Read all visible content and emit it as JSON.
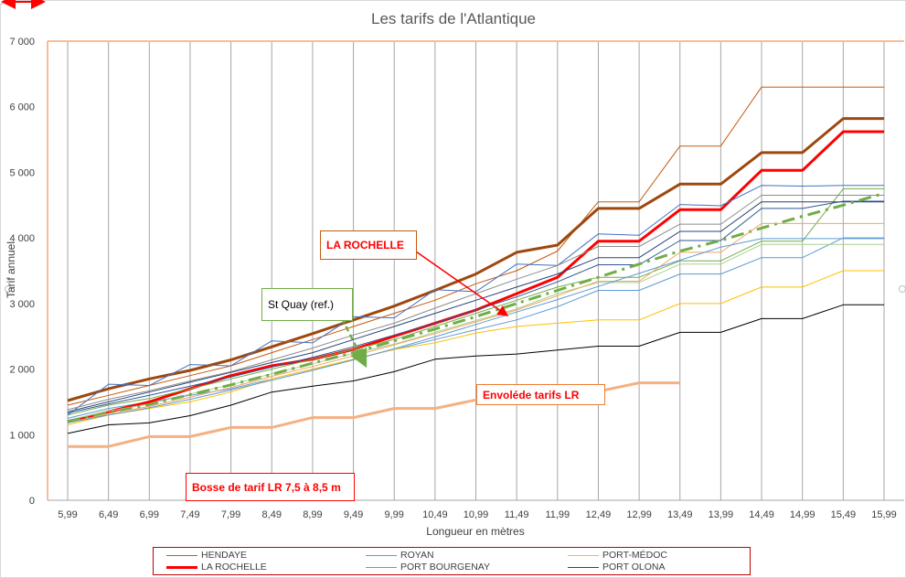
{
  "chart_data": {
    "type": "line",
    "title": "Les tarifs de l'Atlantique",
    "xlabel": "Longueur en mètres",
    "ylabel": "Tarif annuel",
    "ylim": [
      0,
      7000
    ],
    "y_ticks": [
      "0",
      "1 000",
      "2 000",
      "3 000",
      "4 000",
      "5 000",
      "6 000",
      "7 000"
    ],
    "categories": [
      "5,99",
      "6,49",
      "6,99",
      "7,49",
      "7,99",
      "8,49",
      "8,99",
      "9,49",
      "9,99",
      "10,49",
      "10,99",
      "11,49",
      "11,99",
      "12,49",
      "12,99",
      "13,49",
      "13,99",
      "14,49",
      "14,99",
      "15,49",
      "15,99"
    ],
    "grid": "vertical",
    "legend_position": "bottom",
    "series": [
      {
        "name": "HENDAYE",
        "color": "#c55a11",
        "width": 1,
        "values": [
          1450,
          1600,
          1750,
          1900,
          2050,
          2250,
          2450,
          2650,
          2850,
          3050,
          3300,
          3500,
          3800,
          4550,
          4550,
          5400,
          5400,
          6300,
          6300,
          6300,
          6300
        ]
      },
      {
        "name": "ROYAN",
        "color": "#5b9bd5",
        "width": 1,
        "values": [
          1250,
          1400,
          1500,
          1600,
          1700,
          1850,
          2000,
          2150,
          2300,
          2450,
          2600,
          2750,
          2950,
          3200,
          3200,
          3450,
          3450,
          3700,
          3700,
          4000,
          4000
        ]
      },
      {
        "name": "PORT-MÉDOC",
        "color": "#ffc000",
        "width": 1,
        "values": [
          1150,
          1300,
          1400,
          1500,
          1650,
          1850,
          2000,
          2150,
          2300,
          2400,
          2550,
          2650,
          2700,
          2750,
          2750,
          3000,
          3000,
          3250,
          3250,
          3500,
          3500
        ]
      },
      {
        "name": "LA ROCHELLE",
        "color": "#ff0000",
        "width": 3,
        "values": [
          1200,
          1350,
          1500,
          1700,
          1900,
          2050,
          2150,
          2300,
          2500,
          2700,
          2900,
          3150,
          3400,
          3950,
          3950,
          4430,
          4430,
          5030,
          5030,
          5620,
          5620
        ]
      },
      {
        "name": "PORT BOURGENAY",
        "color": "#70ad47",
        "width": 1,
        "values": [
          1300,
          1450,
          1550,
          1700,
          1850,
          2000,
          2150,
          2300,
          2450,
          2650,
          2850,
          3050,
          3250,
          3400,
          3400,
          3650,
          3650,
          3950,
          3950,
          4750,
          4750
        ]
      },
      {
        "name": "PORT OLONA",
        "color": "#264478",
        "width": 1,
        "values": [
          1350,
          1500,
          1650,
          1800,
          1950,
          2100,
          2250,
          2450,
          2650,
          2850,
          3050,
          3250,
          3450,
          3700,
          3700,
          4100,
          4100,
          4550,
          4550,
          4550,
          4550
        ]
      },
      {
        "name": "",
        "color": "#9e480e",
        "width": 3,
        "values": [
          1520,
          1700,
          1850,
          1980,
          2140,
          2340,
          2540,
          2750,
          2960,
          3200,
          3450,
          3780,
          3890,
          4450,
          4450,
          4820,
          4820,
          5300,
          5300,
          5820,
          5820
        ]
      },
      {
        "name": "",
        "color": "#000000",
        "width": 1,
        "values": [
          1020,
          1150,
          1180,
          1290,
          1450,
          1650,
          1740,
          1820,
          1960,
          2150,
          2200,
          2230,
          2290,
          2350,
          2350,
          2560,
          2560,
          2770,
          2770,
          2980,
          2980
        ]
      },
      {
        "name": "",
        "color": "#4472c4",
        "width": 1,
        "values": [
          1300,
          1770,
          1750,
          2070,
          2050,
          2430,
          2400,
          2800,
          2780,
          3210,
          3180,
          3600,
          3580,
          4060,
          4040,
          4510,
          4490,
          4800,
          4790,
          4800,
          4800
        ]
      },
      {
        "name": "",
        "color": "#8c8c8c",
        "width": 1,
        "values": [
          1380,
          1540,
          1670,
          1820,
          1960,
          2140,
          2320,
          2520,
          2700,
          2930,
          3150,
          3370,
          3580,
          3870,
          3870,
          4210,
          4210,
          4650,
          4650,
          4650,
          4650
        ]
      },
      {
        "name": "",
        "color": "#a9d18e",
        "width": 1,
        "values": [
          1220,
          1360,
          1470,
          1620,
          1760,
          1930,
          2080,
          2240,
          2380,
          2560,
          2740,
          2920,
          3150,
          3320,
          3320,
          3600,
          3600,
          3900,
          3900,
          3900,
          3900
        ]
      },
      {
        "name": "",
        "color": "#2f5597",
        "width": 1,
        "values": [
          1330,
          1470,
          1600,
          1740,
          1880,
          2030,
          2180,
          2340,
          2520,
          2700,
          2900,
          3100,
          3330,
          3590,
          3590,
          3960,
          3960,
          4450,
          4450,
          4560,
          4560
        ]
      },
      {
        "name": "",
        "color": "#70ad47",
        "width": 3,
        "dash": "14 6 3 6",
        "values": [
          1200,
          1330,
          1460,
          1610,
          1760,
          1920,
          2090,
          2250,
          2430,
          2610,
          2800,
          3000,
          3200,
          3400,
          3600,
          3800,
          3960,
          4150,
          4330,
          4500,
          4680
        ]
      },
      {
        "name": "",
        "color": "#f4a460",
        "width": 1,
        "values": [
          1180,
          1320,
          1430,
          1570,
          1720,
          1890,
          2040,
          2200,
          2370,
          2540,
          2720,
          2900,
          3120,
          3340,
          3340,
          3780,
          3780,
          4220,
          4220,
          4220,
          4220
        ]
      },
      {
        "name": "",
        "color": "#5b9bd5",
        "width": 1,
        "values": [
          1180,
          1300,
          1410,
          1540,
          1680,
          1830,
          1980,
          2140,
          2310,
          2490,
          2680,
          2870,
          3060,
          3260,
          3460,
          3660,
          3860,
          3990,
          3990,
          3990,
          3990
        ]
      },
      {
        "name": "",
        "color": "#f4b183",
        "width": 3,
        "end_index": 15,
        "values": [
          820,
          820,
          970,
          970,
          1110,
          1110,
          1260,
          1260,
          1400,
          1400,
          1530,
          1530,
          1660,
          1660,
          1790,
          1790,
          null,
          null,
          null,
          null,
          null
        ]
      }
    ],
    "legend_entries": [
      {
        "label": "HENDAYE",
        "color": "#c55a11",
        "width": 1
      },
      {
        "label": "ROYAN",
        "color": "#5b9bd5",
        "width": 1
      },
      {
        "label": "PORT-MÉDOC",
        "color": "#ffc000",
        "width": 1
      },
      {
        "label": "LA ROCHELLE",
        "color": "#ff0000",
        "width": 3
      },
      {
        "label": "PORT BOURGENAY",
        "color": "#70ad47",
        "width": 1
      },
      {
        "label": "PORT OLONA",
        "color": "#264478",
        "width": 1
      }
    ],
    "annotations": [
      {
        "text": "LA ROCHELLE",
        "color": "#ff0000",
        "bold": true
      },
      {
        "text": "St Quay (ref.)",
        "color": "#000000",
        "bold": false
      },
      {
        "text": "Envoléde tarifs LR",
        "color": "#ff0000",
        "bold": true
      },
      {
        "text": "Bosse de tarif LR 7,5 à 8,5 m",
        "color": "#ff0000",
        "bold": true
      }
    ]
  }
}
